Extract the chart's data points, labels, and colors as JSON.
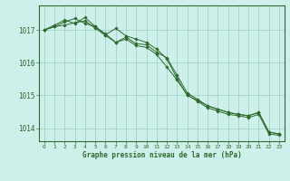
{
  "title": "Graphe pression niveau de la mer (hPa)",
  "bg_color": "#cff0ea",
  "line_color": "#2d6a2d",
  "grid_color": "#9ed4c8",
  "x_ticks": [
    0,
    1,
    2,
    3,
    4,
    5,
    6,
    7,
    8,
    9,
    10,
    11,
    12,
    13,
    14,
    15,
    16,
    17,
    18,
    19,
    20,
    21,
    22,
    23
  ],
  "y_ticks": [
    1014,
    1015,
    1016,
    1017
  ],
  "ylim": [
    1013.6,
    1017.75
  ],
  "xlim": [
    -0.5,
    23.5
  ],
  "series": [
    [
      1017.0,
      1017.1,
      1017.25,
      1017.35,
      1017.2,
      1017.1,
      1016.85,
      1017.05,
      1016.82,
      1016.72,
      1016.62,
      1016.42,
      1016.12,
      1015.52,
      1015.0,
      1014.85,
      1014.68,
      1014.58,
      1014.48,
      1014.42,
      1014.38,
      1014.48,
      1013.88,
      1013.82
    ],
    [
      1017.0,
      1017.15,
      1017.3,
      1017.2,
      1017.38,
      1017.1,
      1016.88,
      1016.62,
      1016.78,
      1016.58,
      1016.55,
      1016.32,
      1016.15,
      1015.62,
      1015.08,
      1014.88,
      1014.68,
      1014.58,
      1014.48,
      1014.42,
      1014.38,
      1014.48,
      1013.88,
      1013.82
    ],
    [
      1017.0,
      1017.1,
      1017.15,
      1017.22,
      1017.28,
      1017.05,
      1016.83,
      1016.62,
      1016.72,
      1016.52,
      1016.47,
      1016.25,
      1015.87,
      1015.47,
      1015.02,
      1014.82,
      1014.62,
      1014.52,
      1014.42,
      1014.38,
      1014.32,
      1014.42,
      1013.82,
      1013.78
    ]
  ]
}
